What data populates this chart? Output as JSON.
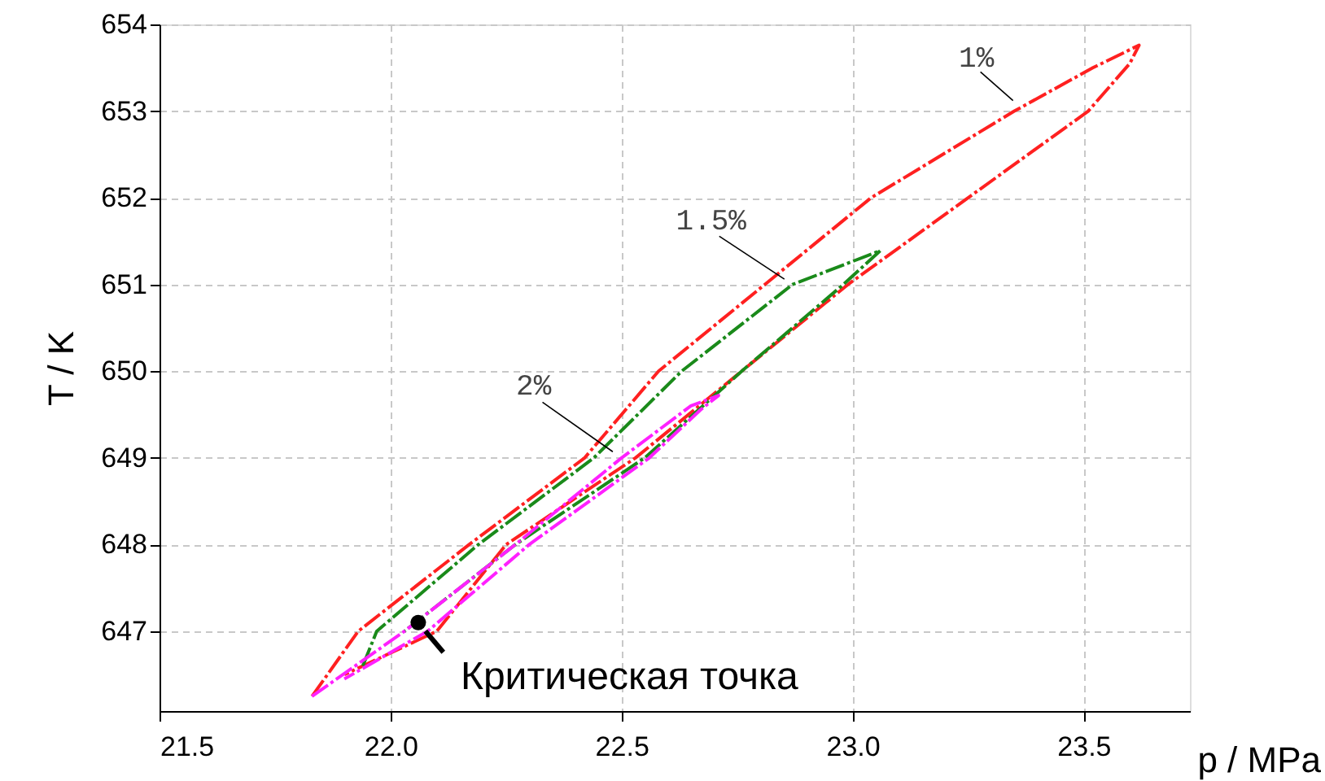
{
  "chart_data": {
    "type": "line",
    "xlabel": "p / MPa",
    "ylabel": "T / K",
    "xlim": [
      21.5,
      23.73
    ],
    "ylim": [
      646.08,
      654
    ],
    "xticks": [
      {
        "value": 21.5,
        "label": "21.5"
      },
      {
        "value": 22.0,
        "label": "22.0"
      },
      {
        "value": 22.5,
        "label": "22.5"
      },
      {
        "value": 23.0,
        "label": "23.0"
      },
      {
        "value": 23.5,
        "label": "23.5"
      }
    ],
    "yticks": [
      647,
      648,
      649,
      650,
      651,
      652,
      653,
      654
    ],
    "grid": true,
    "series": [
      {
        "type": "line",
        "color": "#ff2020",
        "line_style": "dashed",
        "x": [
          21.83,
          21.93,
          22.17,
          22.42,
          22.58,
          22.81,
          23.04,
          23.35,
          23.52,
          23.62,
          23.6,
          23.51,
          23.25,
          22.99,
          22.76,
          22.53,
          22.25,
          22.1,
          21.9
        ],
        "values": [
          646.25,
          647.0,
          648.0,
          649.0,
          650.0,
          651.0,
          652.0,
          653.0,
          653.5,
          653.76,
          653.55,
          653.0,
          652.0,
          651.0,
          650.0,
          649.0,
          648.0,
          647.0,
          646.5
        ]
      },
      {
        "type": "line",
        "color": "#1a8a1a",
        "line_style": "dashed",
        "x": [
          21.94,
          21.97,
          22.19,
          22.44,
          22.63,
          22.87,
          23.06,
          22.98,
          22.76,
          22.55,
          22.27,
          22.03
        ],
        "values": [
          646.6,
          647.0,
          648.0,
          649.0,
          650.0,
          651.0,
          651.39,
          651.0,
          650.0,
          649.0,
          648.0,
          647.0
        ]
      },
      {
        "type": "line",
        "color": "#ff20ff",
        "line_style": "dashed",
        "x": [
          21.83,
          22.03,
          22.27,
          22.5,
          22.65,
          22.71,
          22.67,
          22.56,
          22.3,
          22.08,
          21.9
        ],
        "values": [
          646.25,
          647.0,
          648.0,
          649.0,
          649.6,
          649.72,
          649.55,
          649.0,
          648.0,
          647.0,
          646.45
        ]
      },
      {
        "type": "scatter",
        "color": "#000000",
        "marker": "circle",
        "x": [
          22.06
        ],
        "values": [
          647.1
        ]
      }
    ],
    "annotations": [
      {
        "text": "1%",
        "x": 23.356,
        "y": 653.08
      },
      {
        "text": "1.5%",
        "x": 22.87,
        "y": 651.0
      },
      {
        "text": "2%",
        "x": 22.5,
        "y": 649.0
      },
      {
        "text": "Критическая точка",
        "x": 22.06,
        "y": 647.1
      }
    ]
  }
}
